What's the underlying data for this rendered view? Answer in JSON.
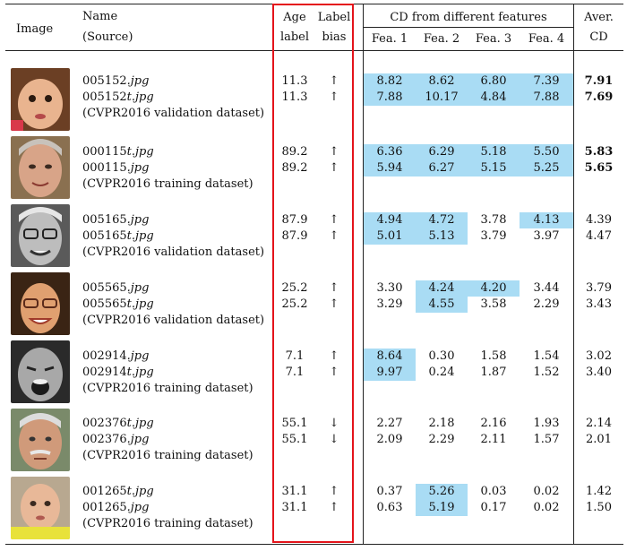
{
  "header": {
    "image": "Image",
    "name": "Name",
    "source": "(Source)",
    "age_line1": "Age",
    "age_line2": "label",
    "bias_line1": "Label",
    "bias_line2": "bias",
    "cd_title": "CD from different features",
    "fea1": "Fea. 1",
    "fea2": "Fea. 2",
    "fea3": "Fea. 3",
    "fea4": "Fea. 4",
    "aver_line1": "Aver.",
    "aver_line2": "CD"
  },
  "colors": {
    "highlight": "#a9dcf4",
    "red_box": "#e4141b"
  },
  "rows": [
    {
      "face": "face-toddler-icon",
      "name1_id": "005152",
      "name1_suffix": "",
      "name2_id": "005152",
      "name2_suffix": "t",
      "source": "(CVPR2016 validation dataset)",
      "age1": "11.3",
      "age2": "11.3",
      "bias1": "↑",
      "bias2": "↑",
      "f1": [
        "8.82",
        "7.88"
      ],
      "f2": [
        "8.62",
        "10.17"
      ],
      "f3": [
        "6.80",
        "4.84"
      ],
      "f4": [
        "7.39",
        "7.88"
      ],
      "avg": [
        "7.91",
        "7.69"
      ]
    },
    {
      "face": "face-elderly-woman-icon",
      "name1_id": "000115",
      "name1_suffix": "t",
      "name2_id": "000115",
      "name2_suffix": "",
      "source": "(CVPR2016 training dataset)",
      "age1": "89.2",
      "age2": "89.2",
      "bias1": "↑",
      "bias2": "↑",
      "f1": [
        "6.36",
        "5.94"
      ],
      "f2": [
        "6.29",
        "6.27"
      ],
      "f3": [
        "5.18",
        "5.15"
      ],
      "f4": [
        "5.50",
        "5.25"
      ],
      "avg": [
        "5.83",
        "5.65"
      ]
    },
    {
      "face": "face-elderly-glasses-icon",
      "name1_id": "005165",
      "name1_suffix": "",
      "name2_id": "005165",
      "name2_suffix": "t",
      "source": "(CVPR2016 validation dataset)",
      "age1": "87.9",
      "age2": "87.9",
      "bias1": "↑",
      "bias2": "↑",
      "f1": [
        "4.94",
        "5.01"
      ],
      "f2": [
        "4.72",
        "5.13"
      ],
      "f3": [
        "3.78",
        "3.79"
      ],
      "f4": [
        "4.13",
        "3.97"
      ],
      "avg": [
        "4.39",
        "4.47"
      ]
    },
    {
      "face": "face-young-woman-glasses-icon",
      "name1_id": "005565",
      "name1_suffix": "",
      "name2_id": "005565",
      "name2_suffix": "t",
      "source": "(CVPR2016 validation dataset)",
      "age1": "25.2",
      "age2": "25.2",
      "bias1": "↑",
      "bias2": "↑",
      "f1": [
        "3.30",
        "3.29"
      ],
      "f2": [
        "4.24",
        "4.55"
      ],
      "f3": [
        "4.20",
        "3.58"
      ],
      "f4": [
        "3.44",
        "2.29"
      ],
      "avg": [
        "3.79",
        "3.43"
      ]
    },
    {
      "face": "face-crying-child-icon",
      "name1_id": "002914",
      "name1_suffix": "",
      "name2_id": "002914",
      "name2_suffix": "t",
      "source": "(CVPR2016 training dataset)",
      "age1": "7.1",
      "age2": "7.1",
      "bias1": "↑",
      "bias2": "↑",
      "f1": [
        "8.64",
        "9.97"
      ],
      "f2": [
        "0.30",
        "0.24"
      ],
      "f3": [
        "1.58",
        "1.87"
      ],
      "f4": [
        "1.54",
        "1.52"
      ],
      "avg": [
        "3.02",
        "3.40"
      ]
    },
    {
      "face": "face-older-man-icon",
      "name1_id": "002376",
      "name1_suffix": "t",
      "name2_id": "002376",
      "name2_suffix": "",
      "source": "(CVPR2016 training dataset)",
      "age1": "55.1",
      "age2": "55.1",
      "bias1": "↓",
      "bias2": "↓",
      "f1": [
        "2.27",
        "2.09"
      ],
      "f2": [
        "2.18",
        "2.29"
      ],
      "f3": [
        "2.16",
        "2.11"
      ],
      "f4": [
        "1.93",
        "1.57"
      ],
      "avg": [
        "2.14",
        "2.01"
      ]
    },
    {
      "face": "face-baby-boy-icon",
      "name1_id": "001265",
      "name1_suffix": "t",
      "name2_id": "001265",
      "name2_suffix": "",
      "source": "(CVPR2016 training dataset)",
      "age1": "31.1",
      "age2": "31.1",
      "bias1": "↑",
      "bias2": "↑",
      "f1": [
        "0.37",
        "0.63"
      ],
      "f2": [
        "5.26",
        "5.19"
      ],
      "f3": [
        "0.03",
        "0.17"
      ],
      "f4": [
        "0.02",
        "0.02"
      ],
      "avg": [
        "1.42",
        "1.50"
      ]
    }
  ]
}
